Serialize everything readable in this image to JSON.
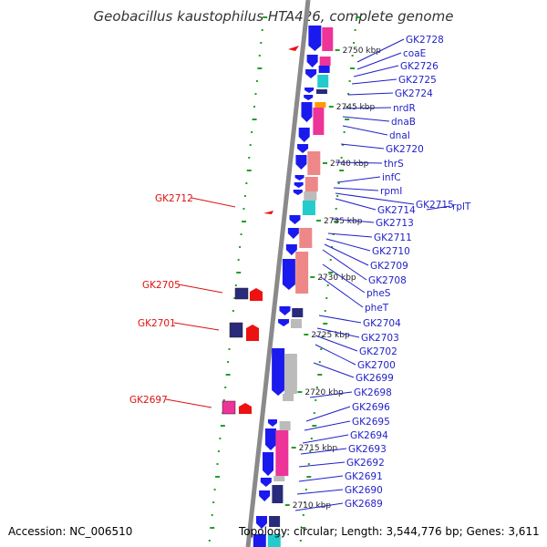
{
  "title": "Geobacillus kaustophilus HTA426, complete genome",
  "footer": {
    "accession_label": "Accession:",
    "accession": "NC_006510",
    "topology_label": "Topology:",
    "topology": "circular",
    "length_label": "Length:",
    "length": "3,544,776 bp",
    "genes_label": "Genes:",
    "genes": "3,611"
  },
  "colors": {
    "gene_label": "#1f1fc8",
    "highlight_label": "#dd1111",
    "backbone": "#8a8a8a",
    "cds_forward": "#1a1aee",
    "cds_navy": "#2a2a7a",
    "rna_pink": "#ee3399",
    "salmon": "#ee8888",
    "cyan": "#22cccc",
    "grey": "#bbbbbb",
    "orange": "#ff9900",
    "tick_green": "#22a022",
    "marker_red": "#ee1111"
  },
  "scale_labels": [
    "2750 kbp",
    "2745 kbp",
    "2740 kbp",
    "2735 kbp",
    "2730 kbp",
    "2725 kbp",
    "2720 kbp",
    "2715 kbp",
    "2710 kbp"
  ],
  "gene_labels": [
    "GK2728",
    "coaE",
    "GK2726",
    "GK2725",
    "GK2724",
    "nrdR",
    "dnaB",
    "dnaI",
    "GK2720",
    "thrS",
    "infC",
    "rpmI",
    "GK2715",
    "rplT",
    "GK2714",
    "GK2713",
    "GK2711",
    "GK2710",
    "GK2709",
    "GK2708",
    "pheS",
    "pheT",
    "GK2704",
    "GK2703",
    "GK2702",
    "GK2700",
    "GK2699",
    "GK2698",
    "GK2696",
    "GK2695",
    "GK2694",
    "GK2693",
    "GK2692",
    "GK2691",
    "GK2690",
    "GK2689"
  ],
  "highlight_labels": [
    "GK2712",
    "GK2705",
    "GK2701",
    "GK2697"
  ]
}
